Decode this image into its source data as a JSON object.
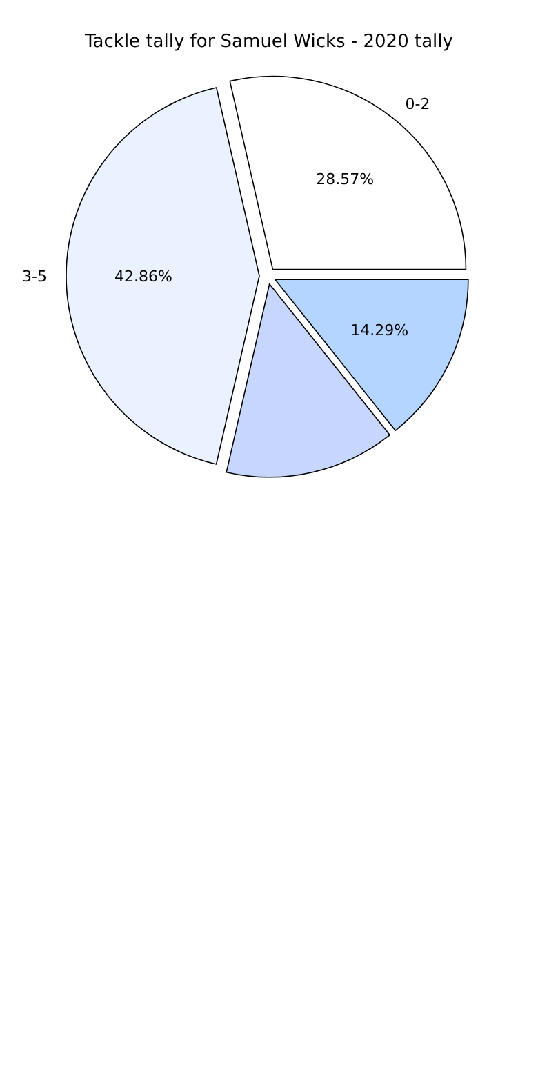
{
  "chart_data": {
    "type": "pie",
    "title": "Tackle tally for Samuel Wicks - 2020 tally",
    "categories": [
      "0-2",
      "3-5",
      null,
      null
    ],
    "values": [
      28.57,
      42.86,
      14.29,
      14.29
    ],
    "value_labels": [
      "28.57%",
      "42.86%",
      null,
      "14.29%"
    ],
    "colors": [
      "#ffffff",
      "#eaf2ff",
      "#c6d6fc",
      "#b3d5ff"
    ]
  }
}
